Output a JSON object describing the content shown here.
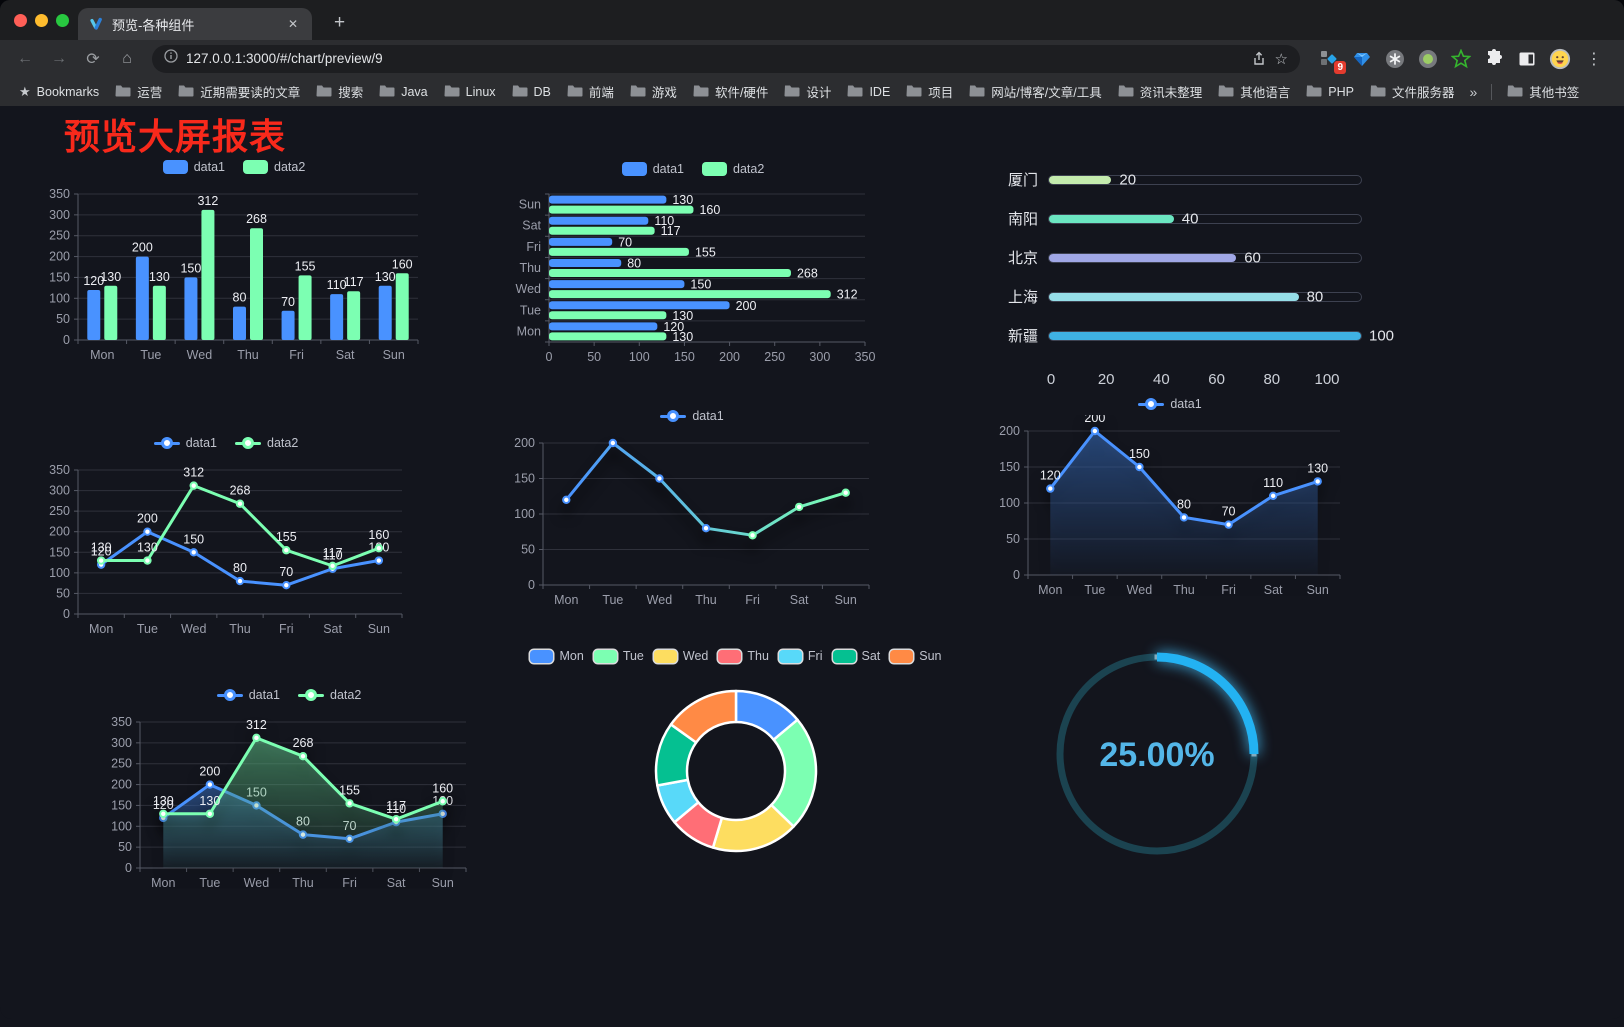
{
  "browser": {
    "tab_title": "预览-各种组件",
    "url": "127.0.0.1:3000/#/chart/preview/9",
    "bookmarks_label": "Bookmarks",
    "bookmarks": [
      "运营",
      "近期需要读的文章",
      "搜索",
      "Java",
      "Linux",
      "DB",
      "前端",
      "游戏",
      "软件/硬件",
      "设计",
      "IDE",
      "项目",
      "网站/博客/文章/工具",
      "资讯未整理",
      "其他语言",
      "PHP",
      "文件服务器"
    ],
    "other_bookmarks": "其他书签",
    "extension_badge": "9",
    "glyphs": {
      "back": "←",
      "forward": "→",
      "reload": "⟳",
      "home": "⌂",
      "close": "✕",
      "plus": "+",
      "overflow": "»",
      "menu": "⋮",
      "star": "☆",
      "bookmark_star": "★"
    }
  },
  "page": {
    "title": "预览大屏报表",
    "title_color": "#f8291b"
  },
  "chart_data": [
    {
      "type": "bar",
      "legend": {
        "icon": "rect",
        "items": [
          {
            "label": "data1",
            "color": "#4992ff"
          },
          {
            "label": "data2",
            "color": "#7cffb2"
          }
        ]
      },
      "categories": [
        "Mon",
        "Tue",
        "Wed",
        "Thu",
        "Fri",
        "Sat",
        "Sun"
      ],
      "series": [
        {
          "name": "data1",
          "color": "#4992ff",
          "values": [
            120,
            200,
            150,
            80,
            70,
            110,
            130
          ]
        },
        {
          "name": "data2",
          "color": "#7cffb2",
          "values": [
            130,
            130,
            312,
            268,
            155,
            117,
            160
          ]
        }
      ],
      "ylim": [
        0,
        350
      ],
      "yticks": [
        0,
        50,
        100,
        150,
        200,
        250,
        300,
        350
      ],
      "labels": true
    },
    {
      "type": "hbar",
      "legend": {
        "icon": "rect",
        "items": [
          {
            "label": "data1",
            "color": "#4992ff"
          },
          {
            "label": "data2",
            "color": "#7cffb2"
          }
        ]
      },
      "categories": [
        "Mon",
        "Tue",
        "Wed",
        "Thu",
        "Fri",
        "Sat",
        "Sun"
      ],
      "series": [
        {
          "name": "data1",
          "color": "#4992ff",
          "values": [
            120,
            200,
            150,
            80,
            70,
            110,
            130
          ]
        },
        {
          "name": "data2",
          "color": "#7cffb2",
          "values": [
            130,
            130,
            312,
            268,
            155,
            117,
            160
          ]
        }
      ],
      "xlim": [
        0,
        350
      ],
      "xticks": [
        0,
        50,
        100,
        150,
        200,
        250,
        300,
        350
      ],
      "labels": true
    },
    {
      "type": "progress",
      "max": 100,
      "xticks": [
        0,
        20,
        40,
        60,
        80,
        100
      ],
      "rows": [
        {
          "label": "厦门",
          "value": 20,
          "color": "#c4ebad"
        },
        {
          "label": "南阳",
          "value": 40,
          "color": "#6be6c1"
        },
        {
          "label": "北京",
          "value": 60,
          "color": "#a0a7e6"
        },
        {
          "label": "上海",
          "value": 80,
          "color": "#96dee8"
        },
        {
          "label": "新疆",
          "value": 100,
          "color": "#3fb1e3"
        }
      ]
    },
    {
      "type": "line",
      "legend": {
        "icon": "line",
        "items": [
          {
            "label": "data1",
            "color": "#4992ff"
          },
          {
            "label": "data2",
            "color": "#7cffb2"
          }
        ]
      },
      "categories": [
        "Mon",
        "Tue",
        "Wed",
        "Thu",
        "Fri",
        "Sat",
        "Sun"
      ],
      "series": [
        {
          "name": "data1",
          "color": "#4992ff",
          "values": [
            120,
            200,
            150,
            80,
            70,
            110,
            130
          ]
        },
        {
          "name": "data2",
          "color": "#7cffb2",
          "values": [
            130,
            130,
            312,
            268,
            155,
            117,
            160
          ]
        }
      ],
      "ylim": [
        0,
        350
      ],
      "yticks": [
        0,
        50,
        100,
        150,
        200,
        250,
        300,
        350
      ],
      "labels": true
    },
    {
      "type": "line",
      "legend": {
        "icon": "line",
        "items": [
          {
            "label": "data1",
            "color": "#4992ff"
          }
        ]
      },
      "categories": [
        "Mon",
        "Tue",
        "Wed",
        "Thu",
        "Fri",
        "Sat",
        "Sun"
      ],
      "series": [
        {
          "name": "data1",
          "color": "#4992ff",
          "gradient": [
            "#4992ff",
            "#7cffb2"
          ],
          "values": [
            120,
            200,
            150,
            80,
            70,
            110,
            130
          ]
        }
      ],
      "ylim": [
        0,
        200
      ],
      "yticks": [
        0,
        50,
        100,
        150,
        200
      ],
      "labels": false,
      "shadow": true
    },
    {
      "type": "line",
      "legend": {
        "icon": "line",
        "items": [
          {
            "label": "data1",
            "color": "#4992ff"
          }
        ]
      },
      "categories": [
        "Mon",
        "Tue",
        "Wed",
        "Thu",
        "Fri",
        "Sat",
        "Sun"
      ],
      "series": [
        {
          "name": "data1",
          "color": "#4992ff",
          "area": true,
          "values": [
            120,
            200,
            150,
            80,
            70,
            110,
            130
          ]
        }
      ],
      "ylim": [
        0,
        200
      ],
      "yticks": [
        0,
        50,
        100,
        150,
        200
      ],
      "labels": true,
      "shadow": true
    },
    {
      "type": "line",
      "legend": {
        "icon": "line",
        "items": [
          {
            "label": "data1",
            "color": "#4992ff"
          },
          {
            "label": "data2",
            "color": "#7cffb2"
          }
        ]
      },
      "categories": [
        "Mon",
        "Tue",
        "Wed",
        "Thu",
        "Fri",
        "Sat",
        "Sun"
      ],
      "series": [
        {
          "name": "data1",
          "color": "#4992ff",
          "area": true,
          "values": [
            120,
            200,
            150,
            80,
            70,
            110,
            130
          ]
        },
        {
          "name": "data2",
          "color": "#7cffb2",
          "area": true,
          "values": [
            130,
            130,
            312,
            268,
            155,
            117,
            160
          ]
        }
      ],
      "ylim": [
        0,
        350
      ],
      "yticks": [
        0,
        50,
        100,
        150,
        200,
        250,
        300,
        350
      ],
      "labels": true,
      "shadow": true
    },
    {
      "type": "pie",
      "inner_radius": 49,
      "outer_radius": 80,
      "center": [
        191,
        104
      ],
      "legend": {
        "icon": "chip-bordered",
        "items": [
          {
            "label": "Mon",
            "color": "#4992ff"
          },
          {
            "label": "Tue",
            "color": "#7cffb2"
          },
          {
            "label": "Wed",
            "color": "#fddd60"
          },
          {
            "label": "Thu",
            "color": "#ff6e76"
          },
          {
            "label": "Fri",
            "color": "#58d9f9"
          },
          {
            "label": "Sat",
            "color": "#05c091"
          },
          {
            "label": "Sun",
            "color": "#ff8a45"
          }
        ]
      },
      "items": [
        {
          "label": "Mon",
          "value": 120,
          "color": "#4992ff"
        },
        {
          "label": "Tue",
          "value": 200,
          "color": "#7cffb2"
        },
        {
          "label": "Wed",
          "value": 150,
          "color": "#fddd60"
        },
        {
          "label": "Thu",
          "value": 80,
          "color": "#ff6e76"
        },
        {
          "label": "Fri",
          "value": 70,
          "color": "#58d9f9"
        },
        {
          "label": "Sat",
          "value": 110,
          "color": "#05c091"
        },
        {
          "label": "Sun",
          "value": 130,
          "color": "#ff8a45"
        }
      ]
    },
    {
      "type": "gauge",
      "value_text": "25.00%",
      "percent": 25,
      "color": "#23b2f2",
      "track_color": "#1b4350",
      "text_color": "#54b6e8",
      "radius": 97
    }
  ]
}
